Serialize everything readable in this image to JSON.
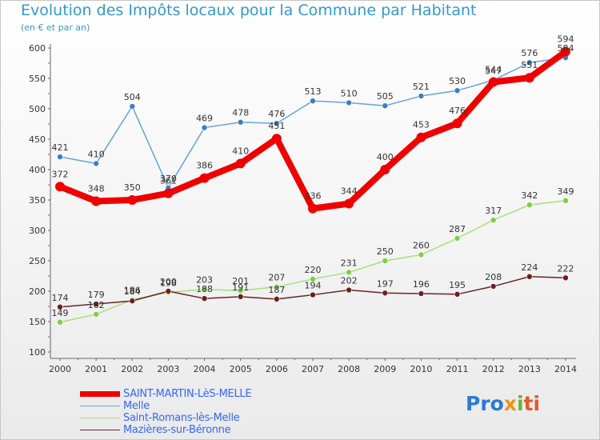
{
  "chart_data": {
    "type": "line",
    "title": "Evolution des Impôts locaux pour la Commune par Habitant",
    "subtitle": "(en € et par an)",
    "xlabel": "",
    "ylabel": "",
    "ylim": [
      100,
      600
    ],
    "yticks": [
      100,
      150,
      200,
      250,
      300,
      350,
      400,
      450,
      500,
      550,
      600
    ],
    "x": [
      "2000",
      "2001",
      "2002",
      "2003",
      "2004",
      "2005",
      "2006",
      "2007",
      "2008",
      "2009",
      "2010",
      "2011",
      "2012",
      "2013",
      "2014"
    ],
    "grid": false,
    "series": [
      {
        "name": "SAINT-MARTIN-LèS-MELLE",
        "color": "#ee0000",
        "dot_color": "#ee0000",
        "label_color": "#333333",
        "emphasis": true,
        "values": [
          372,
          348,
          350,
          361,
          386,
          410,
          451,
          336,
          344,
          400,
          453,
          476,
          544,
          551,
          594
        ],
        "labels": [
          "372",
          "348",
          "350",
          "361",
          "386",
          "410",
          "451",
          "336",
          "344",
          "400",
          "453",
          "476",
          "544",
          "551",
          "594"
        ]
      },
      {
        "name": "Melle",
        "color": "#66a3d9",
        "dot_color": "#3a7fc4",
        "label_color": "#333333",
        "emphasis": false,
        "values": [
          421,
          410,
          504,
          370,
          469,
          478,
          476,
          513,
          510,
          505,
          521,
          530,
          547,
          576,
          584
        ],
        "labels": [
          "421",
          "410",
          "504",
          "370",
          "469",
          "478",
          "476",
          "513",
          "510",
          "505",
          "521",
          "530",
          "547",
          "576",
          "584"
        ]
      },
      {
        "name": "Saint-Romans-lès-Melle",
        "color": "#a6e07a",
        "dot_color": "#7ccf45",
        "label_color": "#333333",
        "emphasis": false,
        "values": [
          149,
          162,
          186,
          198,
          203,
          201,
          207,
          220,
          231,
          250,
          260,
          287,
          317,
          342,
          349
        ],
        "labels": [
          "149",
          "162",
          "186",
          "198",
          "203",
          "201",
          "207",
          "220",
          "231",
          "250",
          "260",
          "287",
          "317",
          "342",
          "349"
        ]
      },
      {
        "name": "Mazières-sur-Béronne",
        "color": "#6b2323",
        "dot_color": "#6b1f1f",
        "label_color": "#333333",
        "emphasis": false,
        "values": [
          174,
          179,
          184,
          200,
          188,
          191,
          187,
          194,
          202,
          197,
          196,
          195,
          208,
          224,
          222
        ],
        "labels": [
          "174",
          "179",
          "184",
          "200",
          "188",
          "191",
          "187",
          "194",
          "202",
          "197",
          "196",
          "195",
          "208",
          "224",
          "222"
        ]
      }
    ]
  },
  "legend": {
    "items": [
      "SAINT-MARTIN-LèS-MELLE",
      "Melle",
      "Saint-Romans-lès-Melle",
      "Mazières-sur-Béronne"
    ]
  },
  "logo": {
    "p1": "Pro",
    "p2": "x",
    "p3": "i",
    "p4": "ti",
    "colors": [
      "#2a7bd6",
      "#e8951e",
      "#6bb33a",
      "#e35b2b"
    ]
  }
}
